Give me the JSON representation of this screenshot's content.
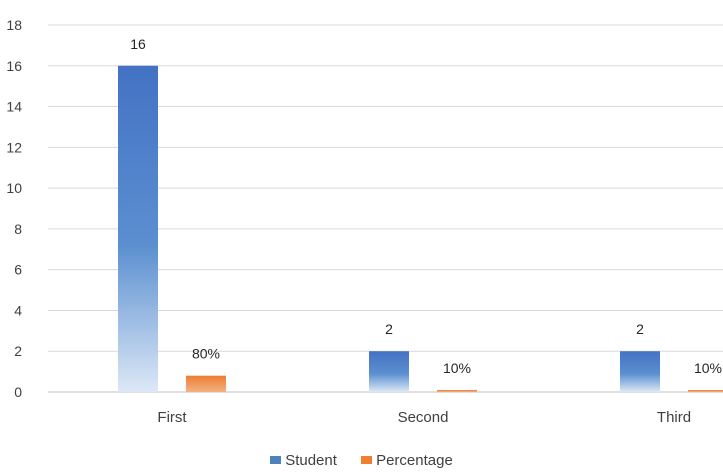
{
  "chart_data": {
    "type": "bar",
    "categories": [
      "First",
      "Second",
      "Third"
    ],
    "series": [
      {
        "name": "Student",
        "values": [
          16,
          2,
          2
        ],
        "labels": [
          "16",
          "2",
          "2"
        ],
        "color": "#4f81bd"
      },
      {
        "name": "Percentage",
        "values": [
          0.8,
          0.1,
          0.1
        ],
        "labels": [
          "80%",
          "10%",
          "10%"
        ],
        "color": "#f07f32"
      }
    ],
    "ylim": [
      0,
      18
    ],
    "yticks": [
      0,
      2,
      4,
      6,
      8,
      10,
      12,
      14,
      16,
      18
    ],
    "grid": true,
    "legend_position": "bottom"
  }
}
